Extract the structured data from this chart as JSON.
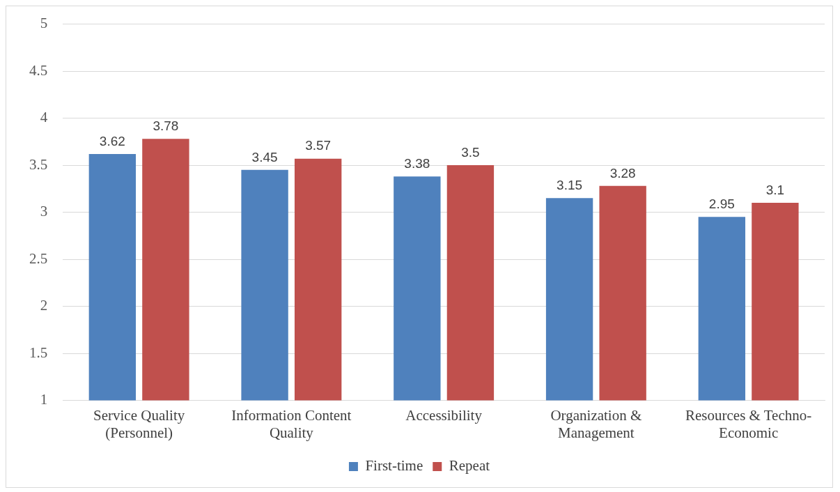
{
  "chart_data": {
    "type": "bar",
    "categories": [
      "Service Quality (Personnel)",
      "Information Content Quality",
      "Accessibility",
      "Organization & Management",
      "Resources & Techno-Economic"
    ],
    "series": [
      {
        "name": "First-time",
        "color": "#4f81bd",
        "values": [
          3.62,
          3.45,
          3.38,
          3.15,
          2.95
        ]
      },
      {
        "name": "Repeat",
        "color": "#c0504d",
        "values": [
          3.78,
          3.57,
          3.5,
          3.28,
          3.1
        ]
      }
    ],
    "ylim": [
      1,
      5
    ],
    "yticks": [
      1,
      1.5,
      2,
      2.5,
      3,
      3.5,
      4,
      4.5,
      5
    ],
    "grid": "y",
    "legend": "bottom",
    "data_labels": true
  }
}
